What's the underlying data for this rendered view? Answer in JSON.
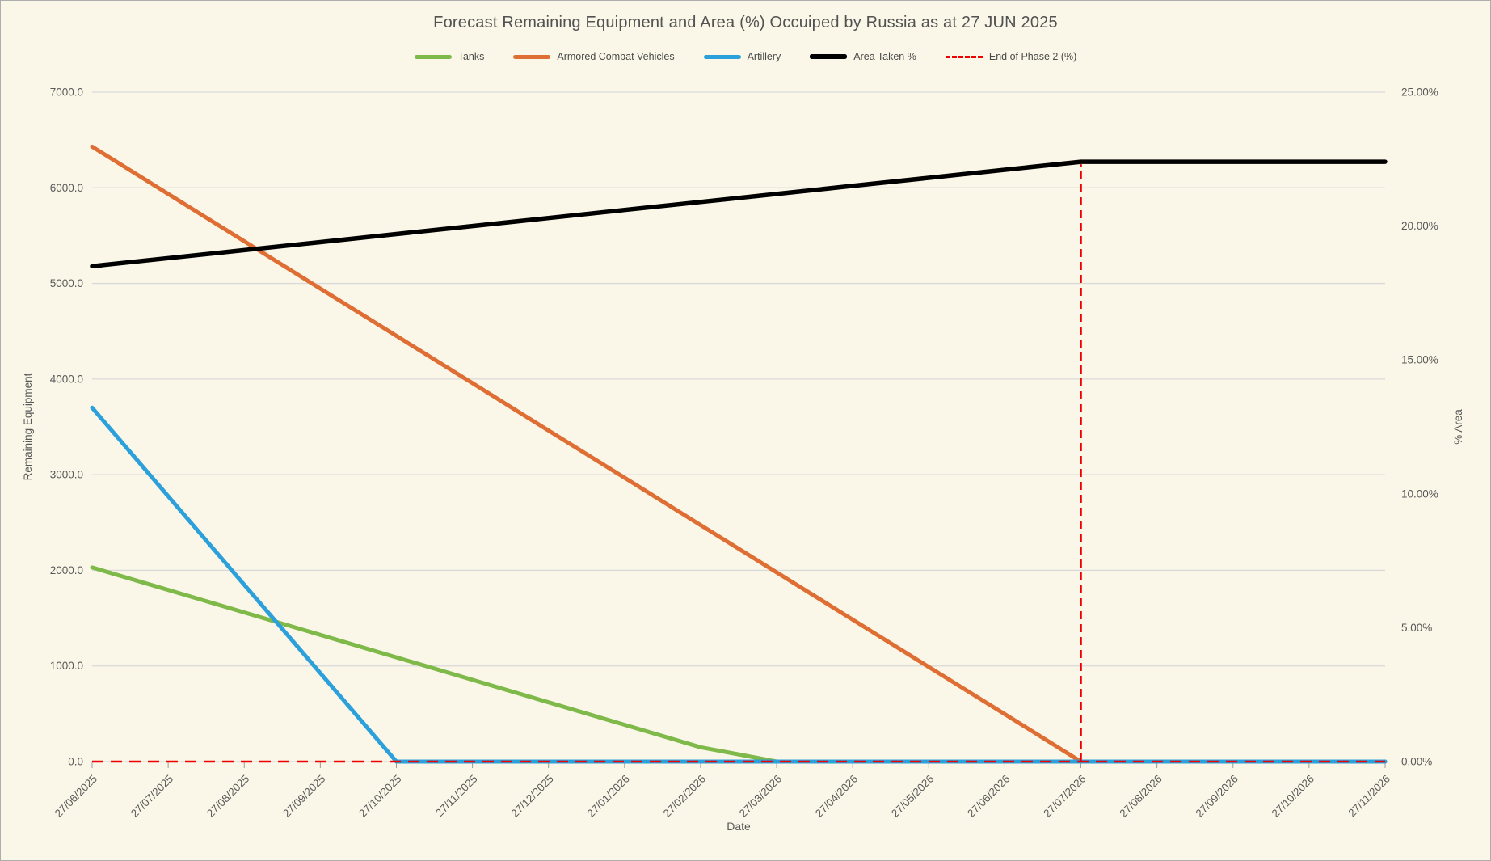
{
  "chart_data": {
    "type": "line",
    "title": "Forecast Remaining Equipment and Area (%) Occuiped by Russia as at 27 JUN 2025",
    "xlabel": "Date",
    "ylabel_left": "Remaining Equipment",
    "ylabel_right": "% Area",
    "grid": true,
    "legend_position": "top",
    "left_axis": {
      "min": 0,
      "max": 7000,
      "step": 1000,
      "format": "one_decimal"
    },
    "right_axis": {
      "min": 0,
      "max": 25,
      "step": 5,
      "format": "percent_two_decimal"
    },
    "x_categories": [
      "27/06/2025",
      "27/07/2025",
      "27/08/2025",
      "27/09/2025",
      "27/10/2025",
      "27/11/2025",
      "27/12/2025",
      "27/01/2026",
      "27/02/2026",
      "27/03/2026",
      "27/04/2026",
      "27/05/2026",
      "27/06/2026",
      "27/07/2026",
      "27/08/2026",
      "27/09/2026",
      "27/10/2026",
      "27/11/2026"
    ],
    "series": [
      {
        "name": "Tanks",
        "axis": "left",
        "color": "#7FB94A",
        "style": "solid",
        "stroke_width": 5,
        "values": [
          2030,
          1795,
          1560,
          1325,
          1090,
          855,
          620,
          385,
          150,
          0,
          0,
          0,
          0,
          0,
          0,
          0,
          0,
          0
        ]
      },
      {
        "name": "Armored Combat Vehicles",
        "axis": "left",
        "color": "#DE6E33",
        "style": "solid",
        "stroke_width": 5,
        "values": [
          6430,
          5936,
          5441,
          4946,
          4452,
          3957,
          3462,
          2968,
          2473,
          1978,
          1484,
          989,
          495,
          0,
          0,
          0,
          0,
          0
        ]
      },
      {
        "name": "Artillery",
        "axis": "left",
        "color": "#2CA0DB",
        "style": "solid",
        "stroke_width": 5,
        "values": [
          3700,
          2775,
          1850,
          925,
          0,
          0,
          0,
          0,
          0,
          0,
          0,
          0,
          0,
          0,
          0,
          0,
          0,
          0
        ]
      },
      {
        "name": "Area Taken %",
        "axis": "right",
        "color": "#000000",
        "style": "solid",
        "stroke_width": 5.5,
        "values": [
          18.5,
          18.8,
          19.1,
          19.4,
          19.7,
          20.0,
          20.3,
          20.6,
          20.9,
          21.2,
          21.5,
          21.8,
          22.1,
          22.4,
          22.4,
          22.4,
          22.4,
          22.4
        ]
      },
      {
        "name": "End of Phase 2 (%)",
        "axis": "right",
        "color": "#EE0000",
        "style": "dashed",
        "stroke_width": 2.5,
        "values": [
          0,
          0,
          0,
          0,
          0,
          0,
          0,
          0,
          0,
          0,
          0,
          0,
          0,
          0,
          0,
          0,
          0,
          0
        ],
        "spike": {
          "x_index": 13,
          "to_value": 22.4
        }
      }
    ],
    "colors": {
      "background": "#FBF7E8",
      "frame_border": "#ADADAD",
      "gridline": "#D9D9D9",
      "tick_mark": "#9B9B9B",
      "axis_text": "#595959",
      "title_text": "#525252"
    }
  }
}
